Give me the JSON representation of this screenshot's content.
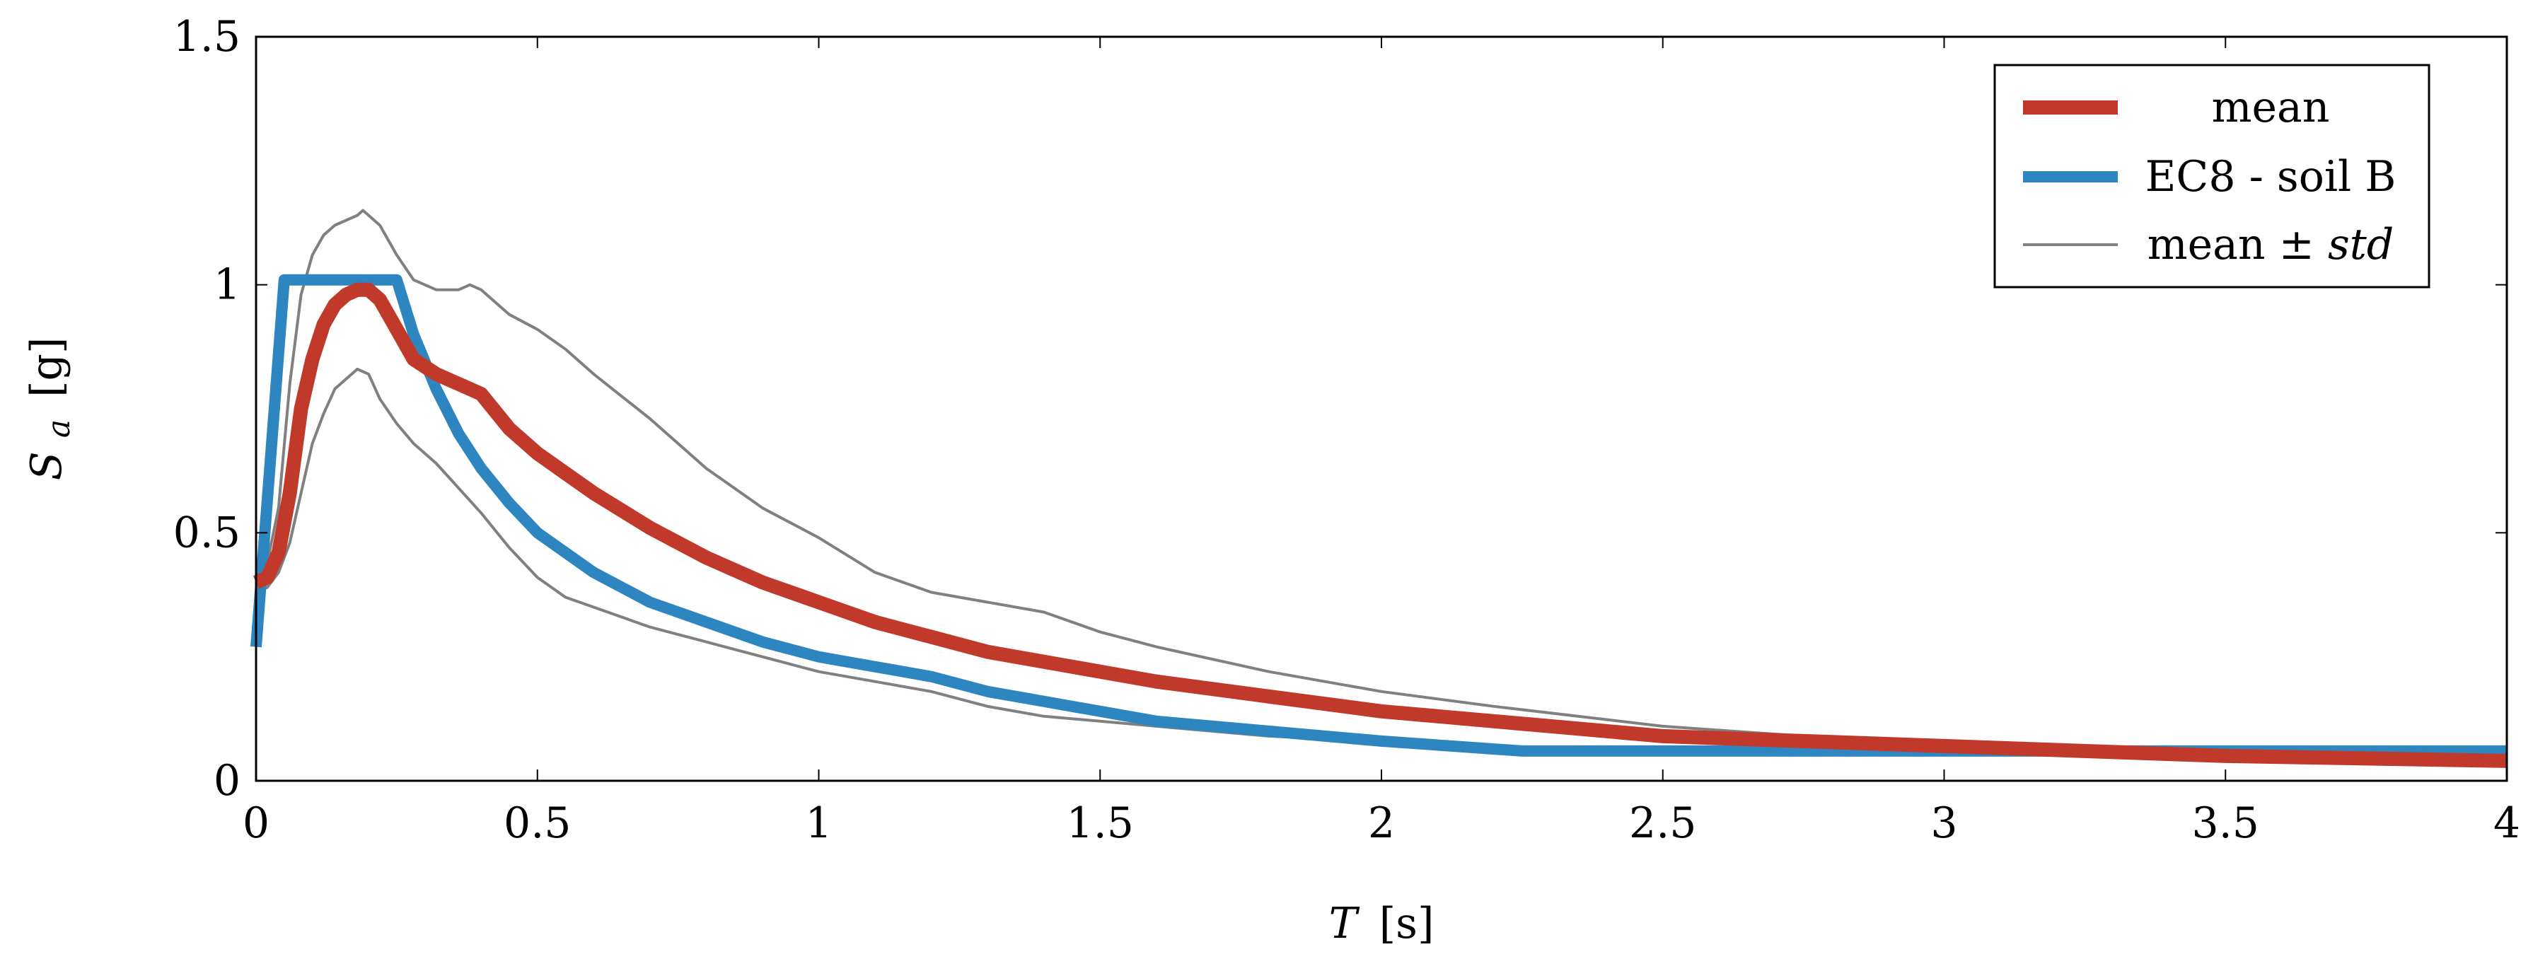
{
  "chart_data": {
    "type": "line",
    "title": "",
    "xlabel": {
      "symbol": "T",
      "unit": "[s]"
    },
    "ylabel": {
      "symbol": "S",
      "subscript": "a",
      "unit": "[g]"
    },
    "xlim": [
      0,
      4
    ],
    "ylim": [
      0,
      1.5
    ],
    "xticks": [
      0,
      0.5,
      1,
      1.5,
      2,
      2.5,
      3,
      3.5,
      4
    ],
    "xtick_labels": [
      "0",
      "0.5",
      "1",
      "1.5",
      "2",
      "2.5",
      "3",
      "3.5",
      "4"
    ],
    "yticks": [
      0,
      0.5,
      1,
      1.5
    ],
    "ytick_labels": [
      "0",
      "0.5",
      "1",
      "1.5"
    ],
    "grid": false,
    "legend_position": "top-right",
    "legend": [
      {
        "label": "mean",
        "color": "#C0392B",
        "style": "thick"
      },
      {
        "label": "EC8 - soil B",
        "color": "#2E86C1",
        "style": "thick"
      },
      {
        "label_prefix": "mean ± ",
        "label_italic": "std",
        "color": "#808080",
        "style": "thin"
      }
    ],
    "series": [
      {
        "name": "mean",
        "color": "#C0392B",
        "x": [
          0,
          0.02,
          0.04,
          0.06,
          0.08,
          0.1,
          0.12,
          0.14,
          0.16,
          0.18,
          0.2,
          0.22,
          0.25,
          0.28,
          0.32,
          0.36,
          0.4,
          0.45,
          0.5,
          0.55,
          0.6,
          0.7,
          0.8,
          0.9,
          1.0,
          1.1,
          1.2,
          1.3,
          1.4,
          1.5,
          1.6,
          1.8,
          2.0,
          2.2,
          2.5,
          3.0,
          3.5,
          4.0
        ],
        "y": [
          0.4,
          0.41,
          0.46,
          0.58,
          0.75,
          0.85,
          0.92,
          0.96,
          0.98,
          0.99,
          0.99,
          0.97,
          0.91,
          0.85,
          0.82,
          0.8,
          0.78,
          0.71,
          0.66,
          0.62,
          0.58,
          0.51,
          0.45,
          0.4,
          0.36,
          0.32,
          0.29,
          0.26,
          0.24,
          0.22,
          0.2,
          0.17,
          0.14,
          0.12,
          0.09,
          0.07,
          0.05,
          0.04
        ]
      },
      {
        "name": "EC8 - soil B",
        "color": "#2E86C1",
        "x": [
          0,
          0.05,
          0.25,
          0.28,
          0.32,
          0.36,
          0.4,
          0.45,
          0.5,
          0.55,
          0.6,
          0.7,
          0.8,
          0.9,
          1.0,
          1.1,
          1.2,
          1.3,
          1.4,
          1.5,
          1.6,
          1.8,
          2.0,
          2.25,
          2.5,
          3.0,
          3.5,
          4.0
        ],
        "y": [
          0.27,
          1.01,
          1.01,
          0.9,
          0.79,
          0.7,
          0.63,
          0.56,
          0.5,
          0.46,
          0.42,
          0.36,
          0.32,
          0.28,
          0.25,
          0.23,
          0.21,
          0.18,
          0.16,
          0.14,
          0.12,
          0.1,
          0.08,
          0.06,
          0.06,
          0.06,
          0.06,
          0.06
        ]
      },
      {
        "name": "mean + std",
        "color": "#808080",
        "x": [
          0,
          0.02,
          0.04,
          0.06,
          0.08,
          0.1,
          0.12,
          0.14,
          0.16,
          0.18,
          0.19,
          0.2,
          0.22,
          0.25,
          0.28,
          0.32,
          0.36,
          0.38,
          0.4,
          0.45,
          0.5,
          0.55,
          0.6,
          0.7,
          0.8,
          0.9,
          1.0,
          1.1,
          1.2,
          1.3,
          1.4,
          1.5,
          1.6,
          1.8,
          2.0,
          2.2,
          2.5,
          3.0,
          3.5,
          4.0
        ],
        "y": [
          0.42,
          0.44,
          0.55,
          0.8,
          0.98,
          1.06,
          1.1,
          1.12,
          1.13,
          1.14,
          1.15,
          1.14,
          1.12,
          1.06,
          1.01,
          0.99,
          0.99,
          1.0,
          0.99,
          0.94,
          0.91,
          0.87,
          0.82,
          0.73,
          0.63,
          0.55,
          0.49,
          0.42,
          0.38,
          0.36,
          0.34,
          0.3,
          0.27,
          0.22,
          0.18,
          0.15,
          0.11,
          0.07,
          0.05,
          0.03
        ]
      },
      {
        "name": "mean - std",
        "color": "#808080",
        "x": [
          0,
          0.02,
          0.04,
          0.06,
          0.08,
          0.1,
          0.12,
          0.14,
          0.16,
          0.18,
          0.2,
          0.22,
          0.25,
          0.28,
          0.32,
          0.36,
          0.4,
          0.45,
          0.5,
          0.55,
          0.6,
          0.7,
          0.8,
          0.9,
          1.0,
          1.1,
          1.2,
          1.3,
          1.4,
          1.5,
          1.6,
          1.8,
          2.0,
          2.2,
          2.5,
          3.0,
          3.5,
          4.0
        ],
        "y": [
          0.38,
          0.39,
          0.42,
          0.48,
          0.58,
          0.68,
          0.74,
          0.79,
          0.81,
          0.83,
          0.82,
          0.77,
          0.72,
          0.68,
          0.64,
          0.59,
          0.54,
          0.47,
          0.41,
          0.37,
          0.35,
          0.31,
          0.28,
          0.25,
          0.22,
          0.2,
          0.18,
          0.15,
          0.13,
          0.12,
          0.11,
          0.09,
          0.08,
          0.07,
          0.06,
          0.06,
          0.05,
          0.03
        ]
      }
    ]
  }
}
